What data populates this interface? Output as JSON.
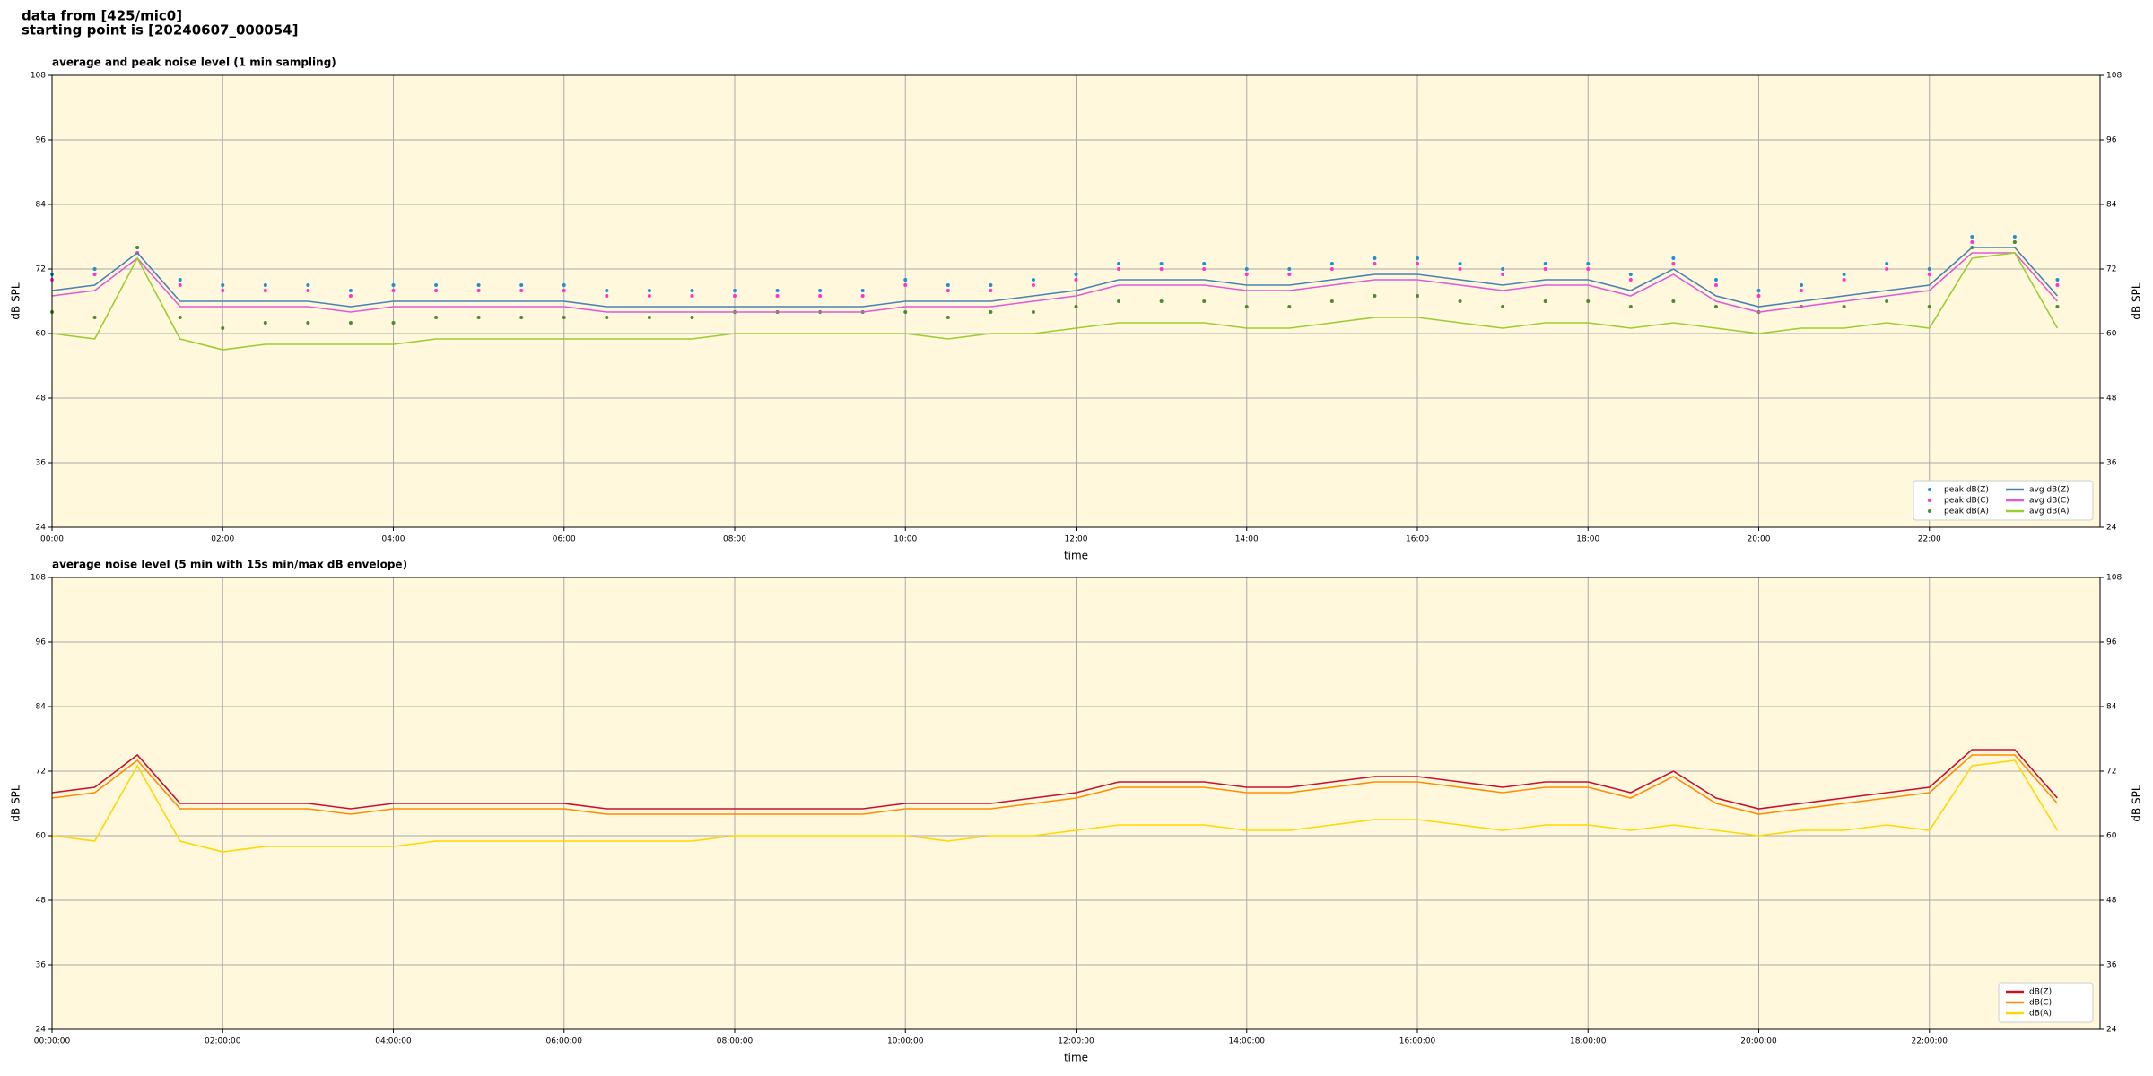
{
  "header": {
    "line1": "data from [425/mic0]",
    "line2": "starting point is [20240607_000054]"
  },
  "chart_data": [
    {
      "type": "line",
      "title": "average and peak noise level (1 min sampling)",
      "x_label": "time",
      "y_label": "dB SPL",
      "xlim": [
        0,
        24
      ],
      "ylim": [
        24,
        108
      ],
      "yticks": [
        24,
        36,
        48,
        60,
        72,
        84,
        96,
        108
      ],
      "xticks": [
        {
          "value": 0,
          "label": "00:00"
        },
        {
          "value": 2,
          "label": "02:00"
        },
        {
          "value": 4,
          "label": "04:00"
        },
        {
          "value": 6,
          "label": "06:00"
        },
        {
          "value": 8,
          "label": "08:00"
        },
        {
          "value": 10,
          "label": "10:00"
        },
        {
          "value": 12,
          "label": "12:00"
        },
        {
          "value": 14,
          "label": "14:00"
        },
        {
          "value": 16,
          "label": "16:00"
        },
        {
          "value": 18,
          "label": "18:00"
        },
        {
          "value": 20,
          "label": "20:00"
        },
        {
          "value": 22,
          "label": "22:00"
        }
      ],
      "grid": true,
      "legend": "lower right",
      "legend_columns": 2,
      "background": "#fff8dc",
      "x": [
        0,
        0.5,
        1,
        1.5,
        2,
        2.5,
        3,
        3.5,
        4,
        4.5,
        5,
        5.5,
        6,
        6.5,
        7,
        7.5,
        8,
        8.5,
        9,
        9.5,
        10,
        10.5,
        11,
        11.5,
        12,
        12.5,
        13,
        13.5,
        14,
        14.5,
        15,
        15.5,
        16,
        16.5,
        17,
        17.5,
        18,
        18.5,
        19,
        19.5,
        20,
        20.5,
        21,
        21.5,
        22,
        22.5,
        23,
        23.5
      ],
      "series": [
        {
          "name": "peak dB(Z)",
          "kind": "scatter",
          "color": "#1f8fd6",
          "values": [
            71,
            72,
            76,
            70,
            69,
            69,
            69,
            68,
            69,
            69,
            69,
            69,
            69,
            68,
            68,
            68,
            68,
            68,
            68,
            68,
            70,
            69,
            69,
            70,
            71,
            73,
            73,
            73,
            72,
            72,
            73,
            74,
            74,
            73,
            72,
            73,
            73,
            71,
            74,
            70,
            68,
            69,
            71,
            73,
            72,
            78,
            78,
            70
          ]
        },
        {
          "name": "peak dB(C)",
          "kind": "scatter",
          "color": "#ff33cc",
          "values": [
            70,
            71,
            75,
            69,
            68,
            68,
            68,
            67,
            68,
            68,
            68,
            68,
            68,
            67,
            67,
            67,
            67,
            67,
            67,
            67,
            69,
            68,
            68,
            69,
            70,
            72,
            72,
            72,
            71,
            71,
            72,
            73,
            73,
            72,
            71,
            72,
            72,
            70,
            73,
            69,
            67,
            68,
            70,
            72,
            71,
            77,
            77,
            69
          ]
        },
        {
          "name": "peak dB(A)",
          "kind": "scatter",
          "color": "#4c8a3a",
          "values": [
            64,
            63,
            76,
            63,
            61,
            62,
            62,
            62,
            62,
            63,
            63,
            63,
            63,
            63,
            63,
            63,
            64,
            64,
            64,
            64,
            64,
            63,
            64,
            64,
            65,
            66,
            66,
            66,
            65,
            65,
            66,
            67,
            67,
            66,
            65,
            66,
            66,
            65,
            66,
            65,
            64,
            65,
            65,
            66,
            65,
            76,
            77,
            65
          ]
        },
        {
          "name": "avg dB(Z)",
          "kind": "line",
          "color": "#4682b4",
          "values": [
            68,
            69,
            75,
            66,
            66,
            66,
            66,
            65,
            66,
            66,
            66,
            66,
            66,
            65,
            65,
            65,
            65,
            65,
            65,
            65,
            66,
            66,
            66,
            67,
            68,
            70,
            70,
            70,
            69,
            69,
            70,
            71,
            71,
            70,
            69,
            70,
            70,
            68,
            72,
            67,
            65,
            66,
            67,
            68,
            69,
            76,
            76,
            67
          ]
        },
        {
          "name": "avg dB(C)",
          "kind": "line",
          "color": "#e05ad6",
          "values": [
            67,
            68,
            74,
            65,
            65,
            65,
            65,
            64,
            65,
            65,
            65,
            65,
            65,
            64,
            64,
            64,
            64,
            64,
            64,
            64,
            65,
            65,
            65,
            66,
            67,
            69,
            69,
            69,
            68,
            68,
            69,
            70,
            70,
            69,
            68,
            69,
            69,
            67,
            71,
            66,
            64,
            65,
            66,
            67,
            68,
            75,
            75,
            66
          ]
        },
        {
          "name": "avg dB(A)",
          "kind": "line",
          "color": "#9acd32",
          "values": [
            60,
            59,
            74,
            59,
            57,
            58,
            58,
            58,
            58,
            59,
            59,
            59,
            59,
            59,
            59,
            59,
            60,
            60,
            60,
            60,
            60,
            59,
            60,
            60,
            61,
            62,
            62,
            62,
            61,
            61,
            62,
            63,
            63,
            62,
            61,
            62,
            62,
            61,
            62,
            61,
            60,
            61,
            61,
            62,
            61,
            74,
            75,
            61
          ]
        }
      ]
    },
    {
      "type": "line",
      "title": "average noise level (5 min with 15s min/max dB envelope)",
      "x_label": "time",
      "y_label": "dB SPL",
      "xlim": [
        0,
        24
      ],
      "ylim": [
        24,
        108
      ],
      "yticks": [
        24,
        36,
        48,
        60,
        72,
        84,
        96,
        108
      ],
      "xticks": [
        {
          "value": 0,
          "label": "00:00:00"
        },
        {
          "value": 2,
          "label": "02:00:00"
        },
        {
          "value": 4,
          "label": "04:00:00"
        },
        {
          "value": 6,
          "label": "06:00:00"
        },
        {
          "value": 8,
          "label": "08:00:00"
        },
        {
          "value": 10,
          "label": "10:00:00"
        },
        {
          "value": 12,
          "label": "12:00:00"
        },
        {
          "value": 14,
          "label": "14:00:00"
        },
        {
          "value": 16,
          "label": "16:00:00"
        },
        {
          "value": 18,
          "label": "18:00:00"
        },
        {
          "value": 20,
          "label": "20:00:00"
        },
        {
          "value": 22,
          "label": "22:00:00"
        }
      ],
      "grid": true,
      "legend": "lower right",
      "legend_columns": 1,
      "background": "#fff8dc",
      "x": [
        0,
        0.5,
        1,
        1.5,
        2,
        2.5,
        3,
        3.5,
        4,
        4.5,
        5,
        5.5,
        6,
        6.5,
        7,
        7.5,
        8,
        8.5,
        9,
        9.5,
        10,
        10.5,
        11,
        11.5,
        12,
        12.5,
        13,
        13.5,
        14,
        14.5,
        15,
        15.5,
        16,
        16.5,
        17,
        17.5,
        18,
        18.5,
        19,
        19.5,
        20,
        20.5,
        21,
        21.5,
        22,
        22.5,
        23,
        23.5
      ],
      "series": [
        {
          "name": "dB(Z)",
          "kind": "line",
          "color": "#c8102e",
          "values": [
            68,
            69,
            75,
            66,
            66,
            66,
            66,
            65,
            66,
            66,
            66,
            66,
            66,
            65,
            65,
            65,
            65,
            65,
            65,
            65,
            66,
            66,
            66,
            67,
            68,
            70,
            70,
            70,
            69,
            69,
            70,
            71,
            71,
            70,
            69,
            70,
            70,
            68,
            72,
            67,
            65,
            66,
            67,
            68,
            69,
            76,
            76,
            67
          ]
        },
        {
          "name": "dB(C)",
          "kind": "line",
          "color": "#ff8c00",
          "values": [
            67,
            68,
            74,
            65,
            65,
            65,
            65,
            64,
            65,
            65,
            65,
            65,
            65,
            64,
            64,
            64,
            64,
            64,
            64,
            64,
            65,
            65,
            65,
            66,
            67,
            69,
            69,
            69,
            68,
            68,
            69,
            70,
            70,
            69,
            68,
            69,
            69,
            67,
            71,
            66,
            64,
            65,
            66,
            67,
            68,
            75,
            75,
            66
          ]
        },
        {
          "name": "dB(A)",
          "kind": "line",
          "color": "#ffd700",
          "values": [
            60,
            59,
            73,
            59,
            57,
            58,
            58,
            58,
            58,
            59,
            59,
            59,
            59,
            59,
            59,
            59,
            60,
            60,
            60,
            60,
            60,
            59,
            60,
            60,
            61,
            62,
            62,
            62,
            61,
            61,
            62,
            63,
            63,
            62,
            61,
            62,
            62,
            61,
            62,
            61,
            60,
            61,
            61,
            62,
            61,
            73,
            74,
            61
          ]
        }
      ]
    }
  ]
}
